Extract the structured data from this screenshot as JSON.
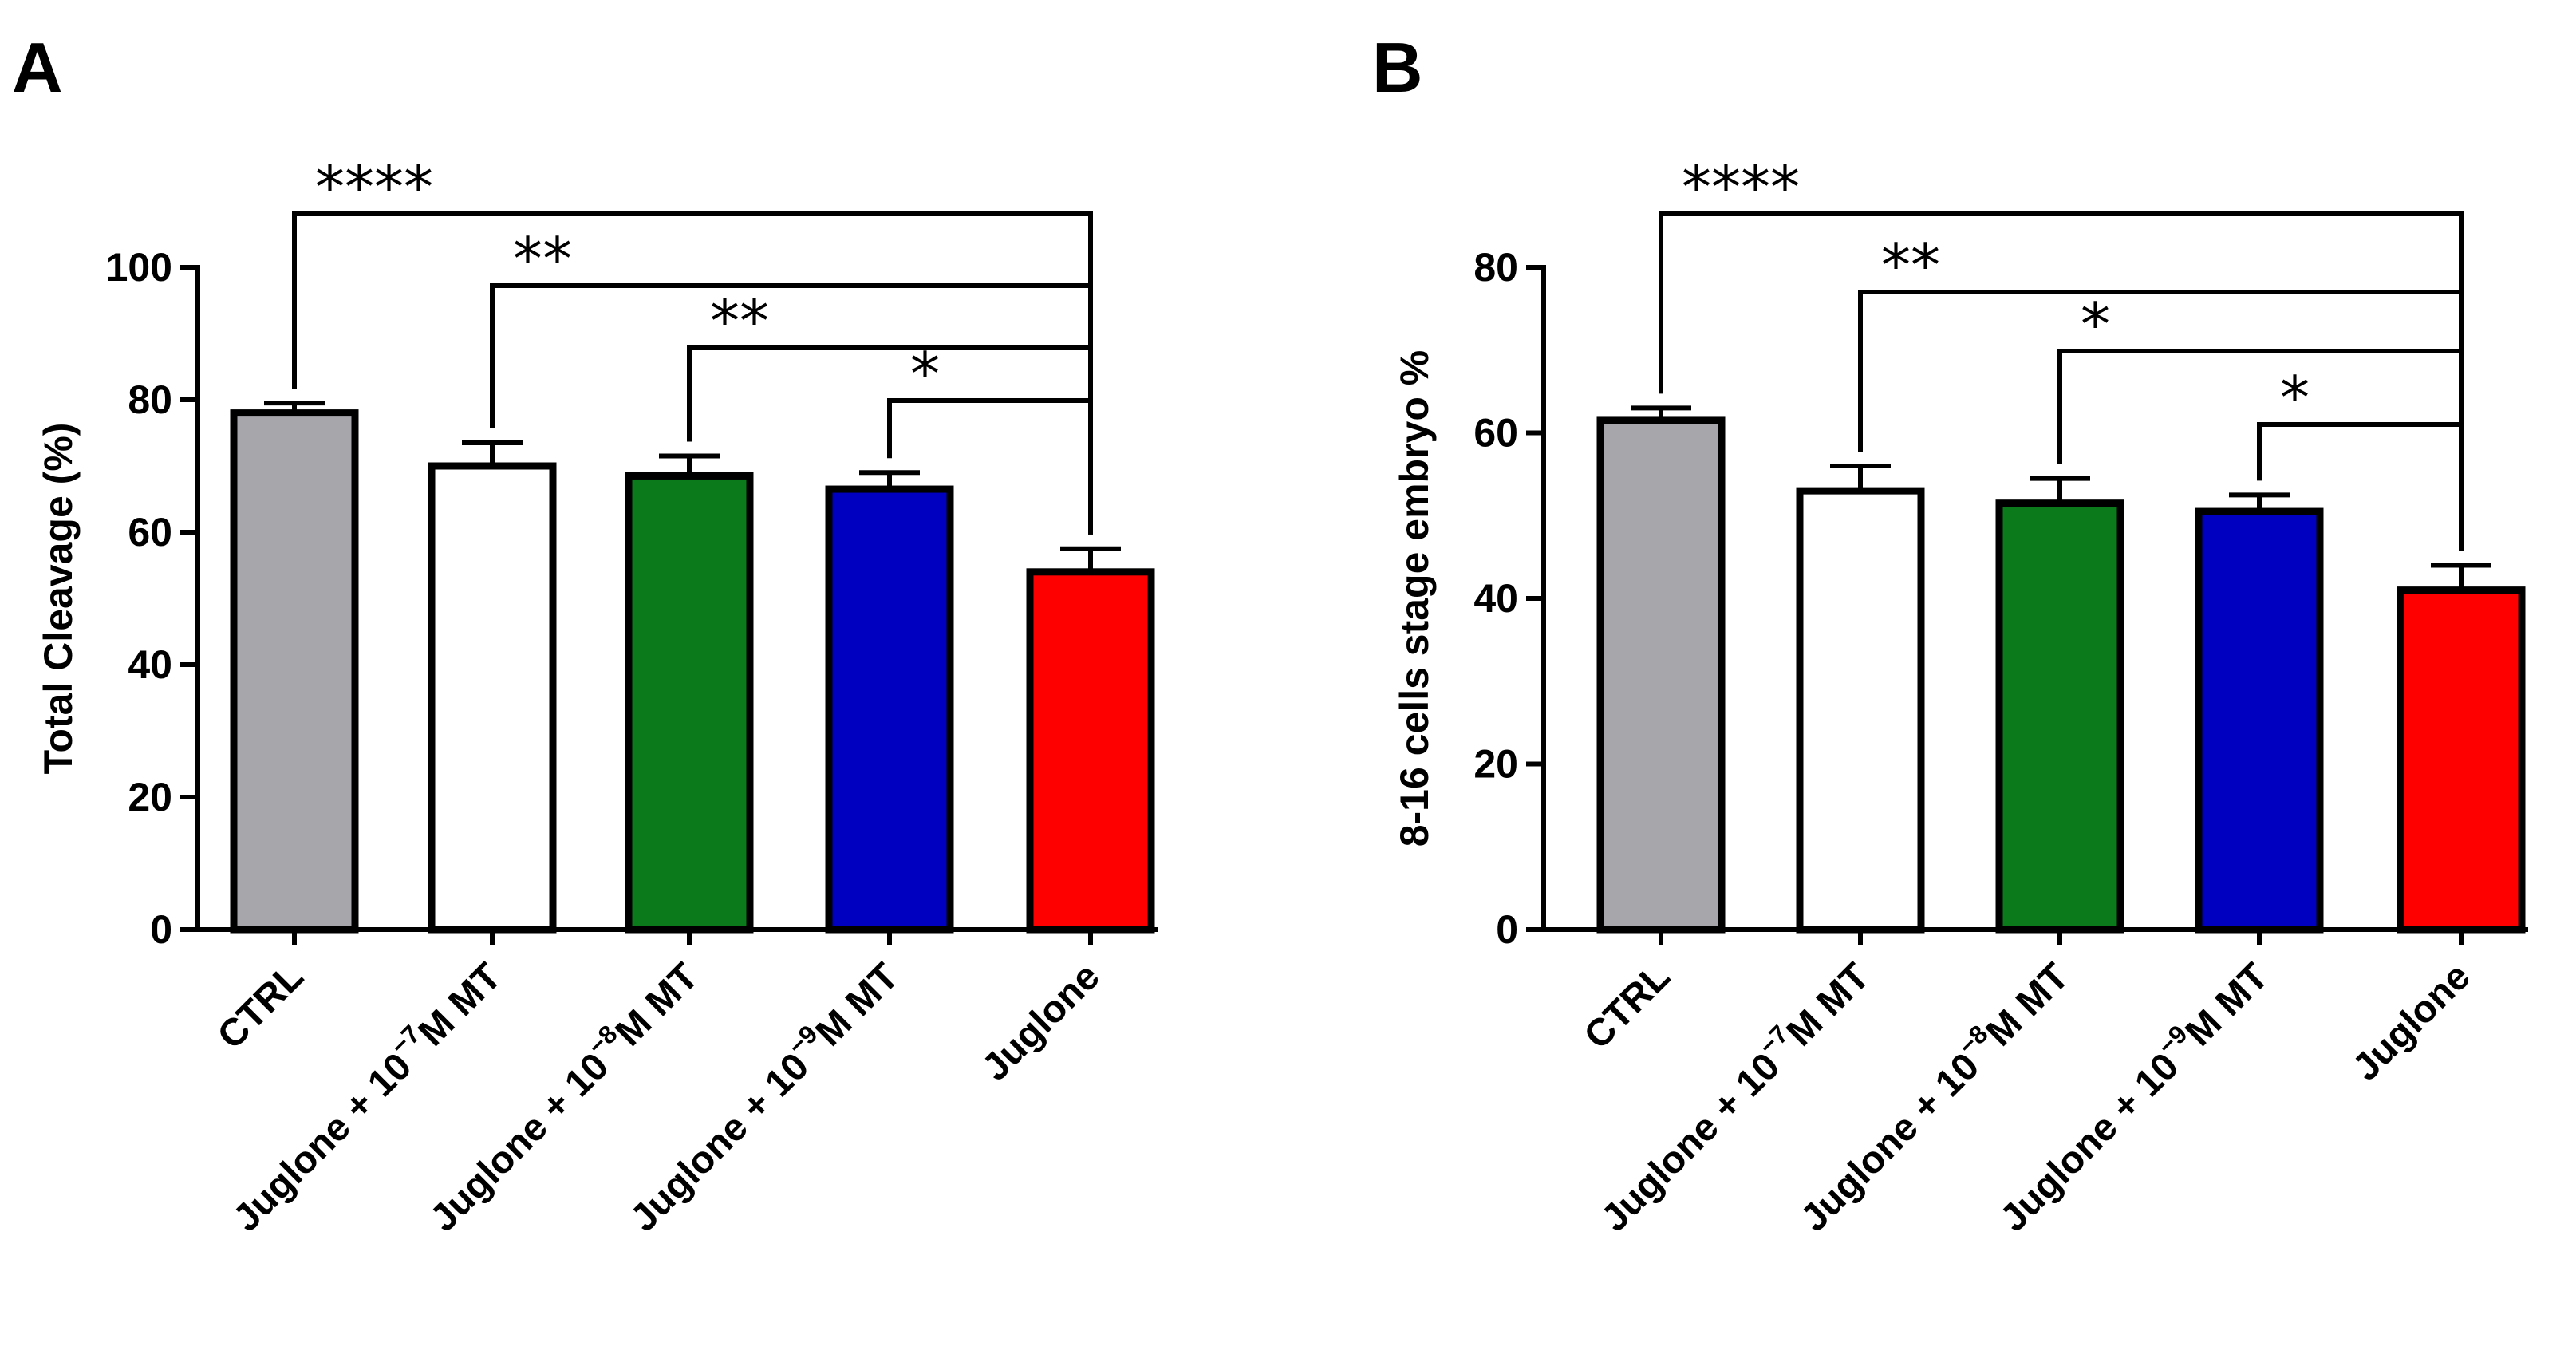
{
  "chart_data": [
    {
      "panel": "A",
      "type": "bar",
      "ylabel": "Total Cleavage (%)",
      "ylim": [
        0,
        100
      ],
      "yticks": [
        0,
        20,
        40,
        60,
        80,
        100
      ],
      "categories": [
        {
          "pre": "CTRL",
          "sup": "",
          "post": ""
        },
        {
          "pre": "Juglone + 10",
          "sup": "−7",
          "post": "M MT"
        },
        {
          "pre": "Juglone + 10",
          "sup": "−8",
          "post": "M MT"
        },
        {
          "pre": "Juglone + 10",
          "sup": "−9",
          "post": "M MT"
        },
        {
          "pre": "Juglone",
          "sup": "",
          "post": ""
        }
      ],
      "values": [
        78,
        70,
        68.5,
        66.5,
        54
      ],
      "errors": [
        1.5,
        3.5,
        3,
        2.5,
        3.5
      ],
      "colors": [
        "#a6a6ab",
        "#ffffff",
        "#0a7a1a",
        "#0000c0",
        "#ff0000"
      ],
      "comparisons": [
        {
          "from": 0,
          "to": 4,
          "label": "****"
        },
        {
          "from": 1,
          "to": 4,
          "label": "**"
        },
        {
          "from": 2,
          "to": 4,
          "label": "**"
        },
        {
          "from": 3,
          "to": 4,
          "label": "*"
        }
      ]
    },
    {
      "panel": "B",
      "type": "bar",
      "ylabel": "8-16 cells stage embryo %",
      "ylim": [
        0,
        80
      ],
      "yticks": [
        0,
        20,
        40,
        60,
        80
      ],
      "categories": [
        {
          "pre": "CTRL",
          "sup": "",
          "post": ""
        },
        {
          "pre": "Juglone + 10",
          "sup": "−7",
          "post": "M MT"
        },
        {
          "pre": "Juglone + 10",
          "sup": "−8",
          "post": "M MT"
        },
        {
          "pre": "Juglone + 10",
          "sup": "−9",
          "post": "M MT"
        },
        {
          "pre": "Juglone",
          "sup": "",
          "post": ""
        }
      ],
      "values": [
        61.5,
        53,
        51.5,
        50.5,
        41
      ],
      "errors": [
        1.5,
        3,
        3,
        2,
        3
      ],
      "colors": [
        "#a6a6ab",
        "#ffffff",
        "#0a7a1a",
        "#0000c0",
        "#ff0000"
      ],
      "comparisons": [
        {
          "from": 0,
          "to": 4,
          "label": "****"
        },
        {
          "from": 1,
          "to": 4,
          "label": "**"
        },
        {
          "from": 2,
          "to": 4,
          "label": "*"
        },
        {
          "from": 3,
          "to": 4,
          "label": "*"
        }
      ]
    }
  ]
}
